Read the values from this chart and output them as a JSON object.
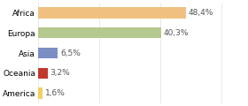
{
  "categories": [
    "Africa",
    "Europa",
    "Asia",
    "Oceania",
    "America"
  ],
  "values": [
    48.4,
    40.3,
    6.5,
    3.2,
    1.6
  ],
  "labels": [
    "48,4%",
    "40,3%",
    "6,5%",
    "3,2%",
    "1,6%"
  ],
  "bar_colors": [
    "#f0c080",
    "#b5c98e",
    "#7b8fc4",
    "#c0392b",
    "#f0d060"
  ],
  "background_color": "#ffffff",
  "xlim": [
    0,
    68
  ],
  "label_fontsize": 6.5,
  "tick_fontsize": 6.5,
  "bar_height": 0.55,
  "grid_color": "#e0e0e0",
  "text_color": "#555555"
}
